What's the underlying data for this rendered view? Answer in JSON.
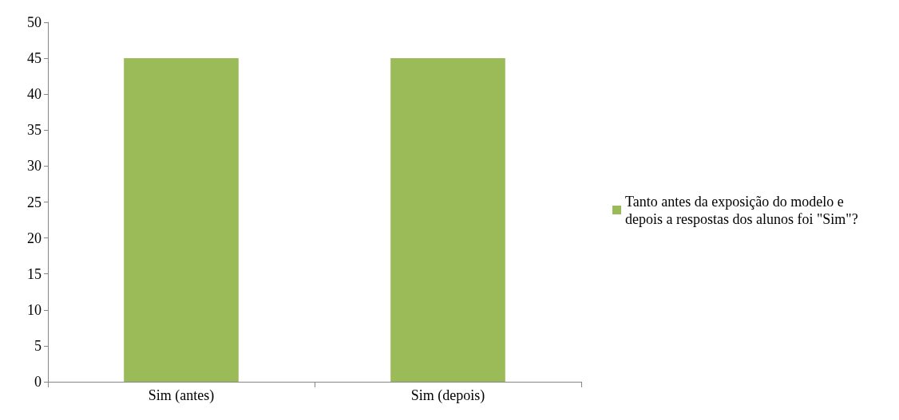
{
  "chart_data": {
    "type": "bar",
    "categories": [
      "Sim (antes)",
      "Sim (depois)"
    ],
    "series": [
      {
        "name": "Tanto antes da exposição do modelo e depois a respostas dos alunos foi \"Sim\"?",
        "color": "#9bbb59",
        "values": [
          45,
          45
        ]
      }
    ],
    "ylim": [
      0,
      50
    ],
    "yticks": [
      0,
      5,
      10,
      15,
      20,
      25,
      30,
      35,
      40,
      45,
      50
    ],
    "grid": false,
    "legend": "right"
  }
}
